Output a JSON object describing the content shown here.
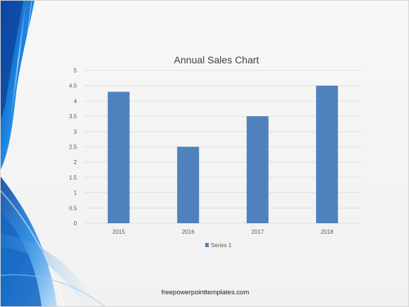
{
  "slide": {
    "footer_text": "freepowerpointtemplates.com"
  },
  "colors": {
    "bar": "#4f81bd",
    "gridline": "#d9d9d9",
    "axis_text": "#595959",
    "title_text": "#404040",
    "swoosh_dark": "#1565c0",
    "swoosh_light": "#90caf9"
  },
  "chart_data": {
    "type": "bar",
    "title": "Annual Sales Chart",
    "categories": [
      "2015",
      "2016",
      "2017",
      "2018"
    ],
    "series": [
      {
        "name": "Series 1",
        "values": [
          4.3,
          2.5,
          3.5,
          4.5
        ]
      }
    ],
    "ylim": [
      0,
      5
    ],
    "yticks": [
      "0",
      "0.5",
      "1",
      "1.5",
      "2",
      "2.5",
      "3",
      "3.5",
      "4",
      "4.5",
      "5"
    ],
    "grid": true,
    "legend": "bottom"
  }
}
